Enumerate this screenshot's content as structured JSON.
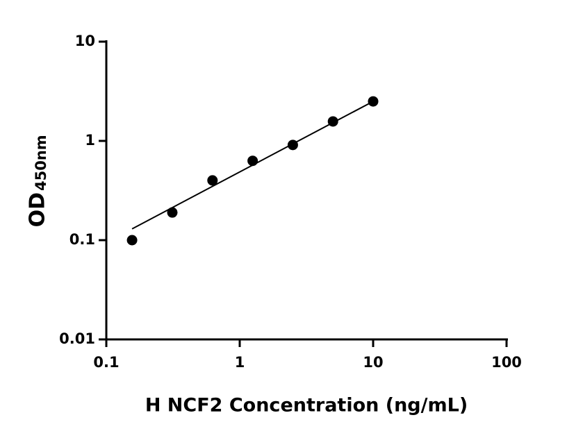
{
  "chart_data": {
    "type": "scatter",
    "x_label": "H NCF2 Concentration (ng/mL)",
    "y_label": {
      "main": "OD",
      "sub": "450nm"
    },
    "x": [
      0.156,
      0.3125,
      0.625,
      1.25,
      2.5,
      5,
      10
    ],
    "series": [
      {
        "color": "#000000",
        "values": [
          0.1,
          0.19,
          0.4,
          0.63,
          0.91,
          1.57,
          2.5
        ]
      }
    ],
    "fit": {
      "x": [
        0.156,
        10
      ],
      "values": [
        0.13,
        2.5
      ],
      "color": "#000000"
    },
    "x_log": true,
    "y_log": true,
    "xlim": [
      0.1,
      100
    ],
    "xticks": [
      0.1,
      1,
      10,
      100
    ],
    "ylim": [
      0.01,
      10
    ],
    "yticks": [
      0.01,
      0.1,
      1,
      10
    ]
  }
}
